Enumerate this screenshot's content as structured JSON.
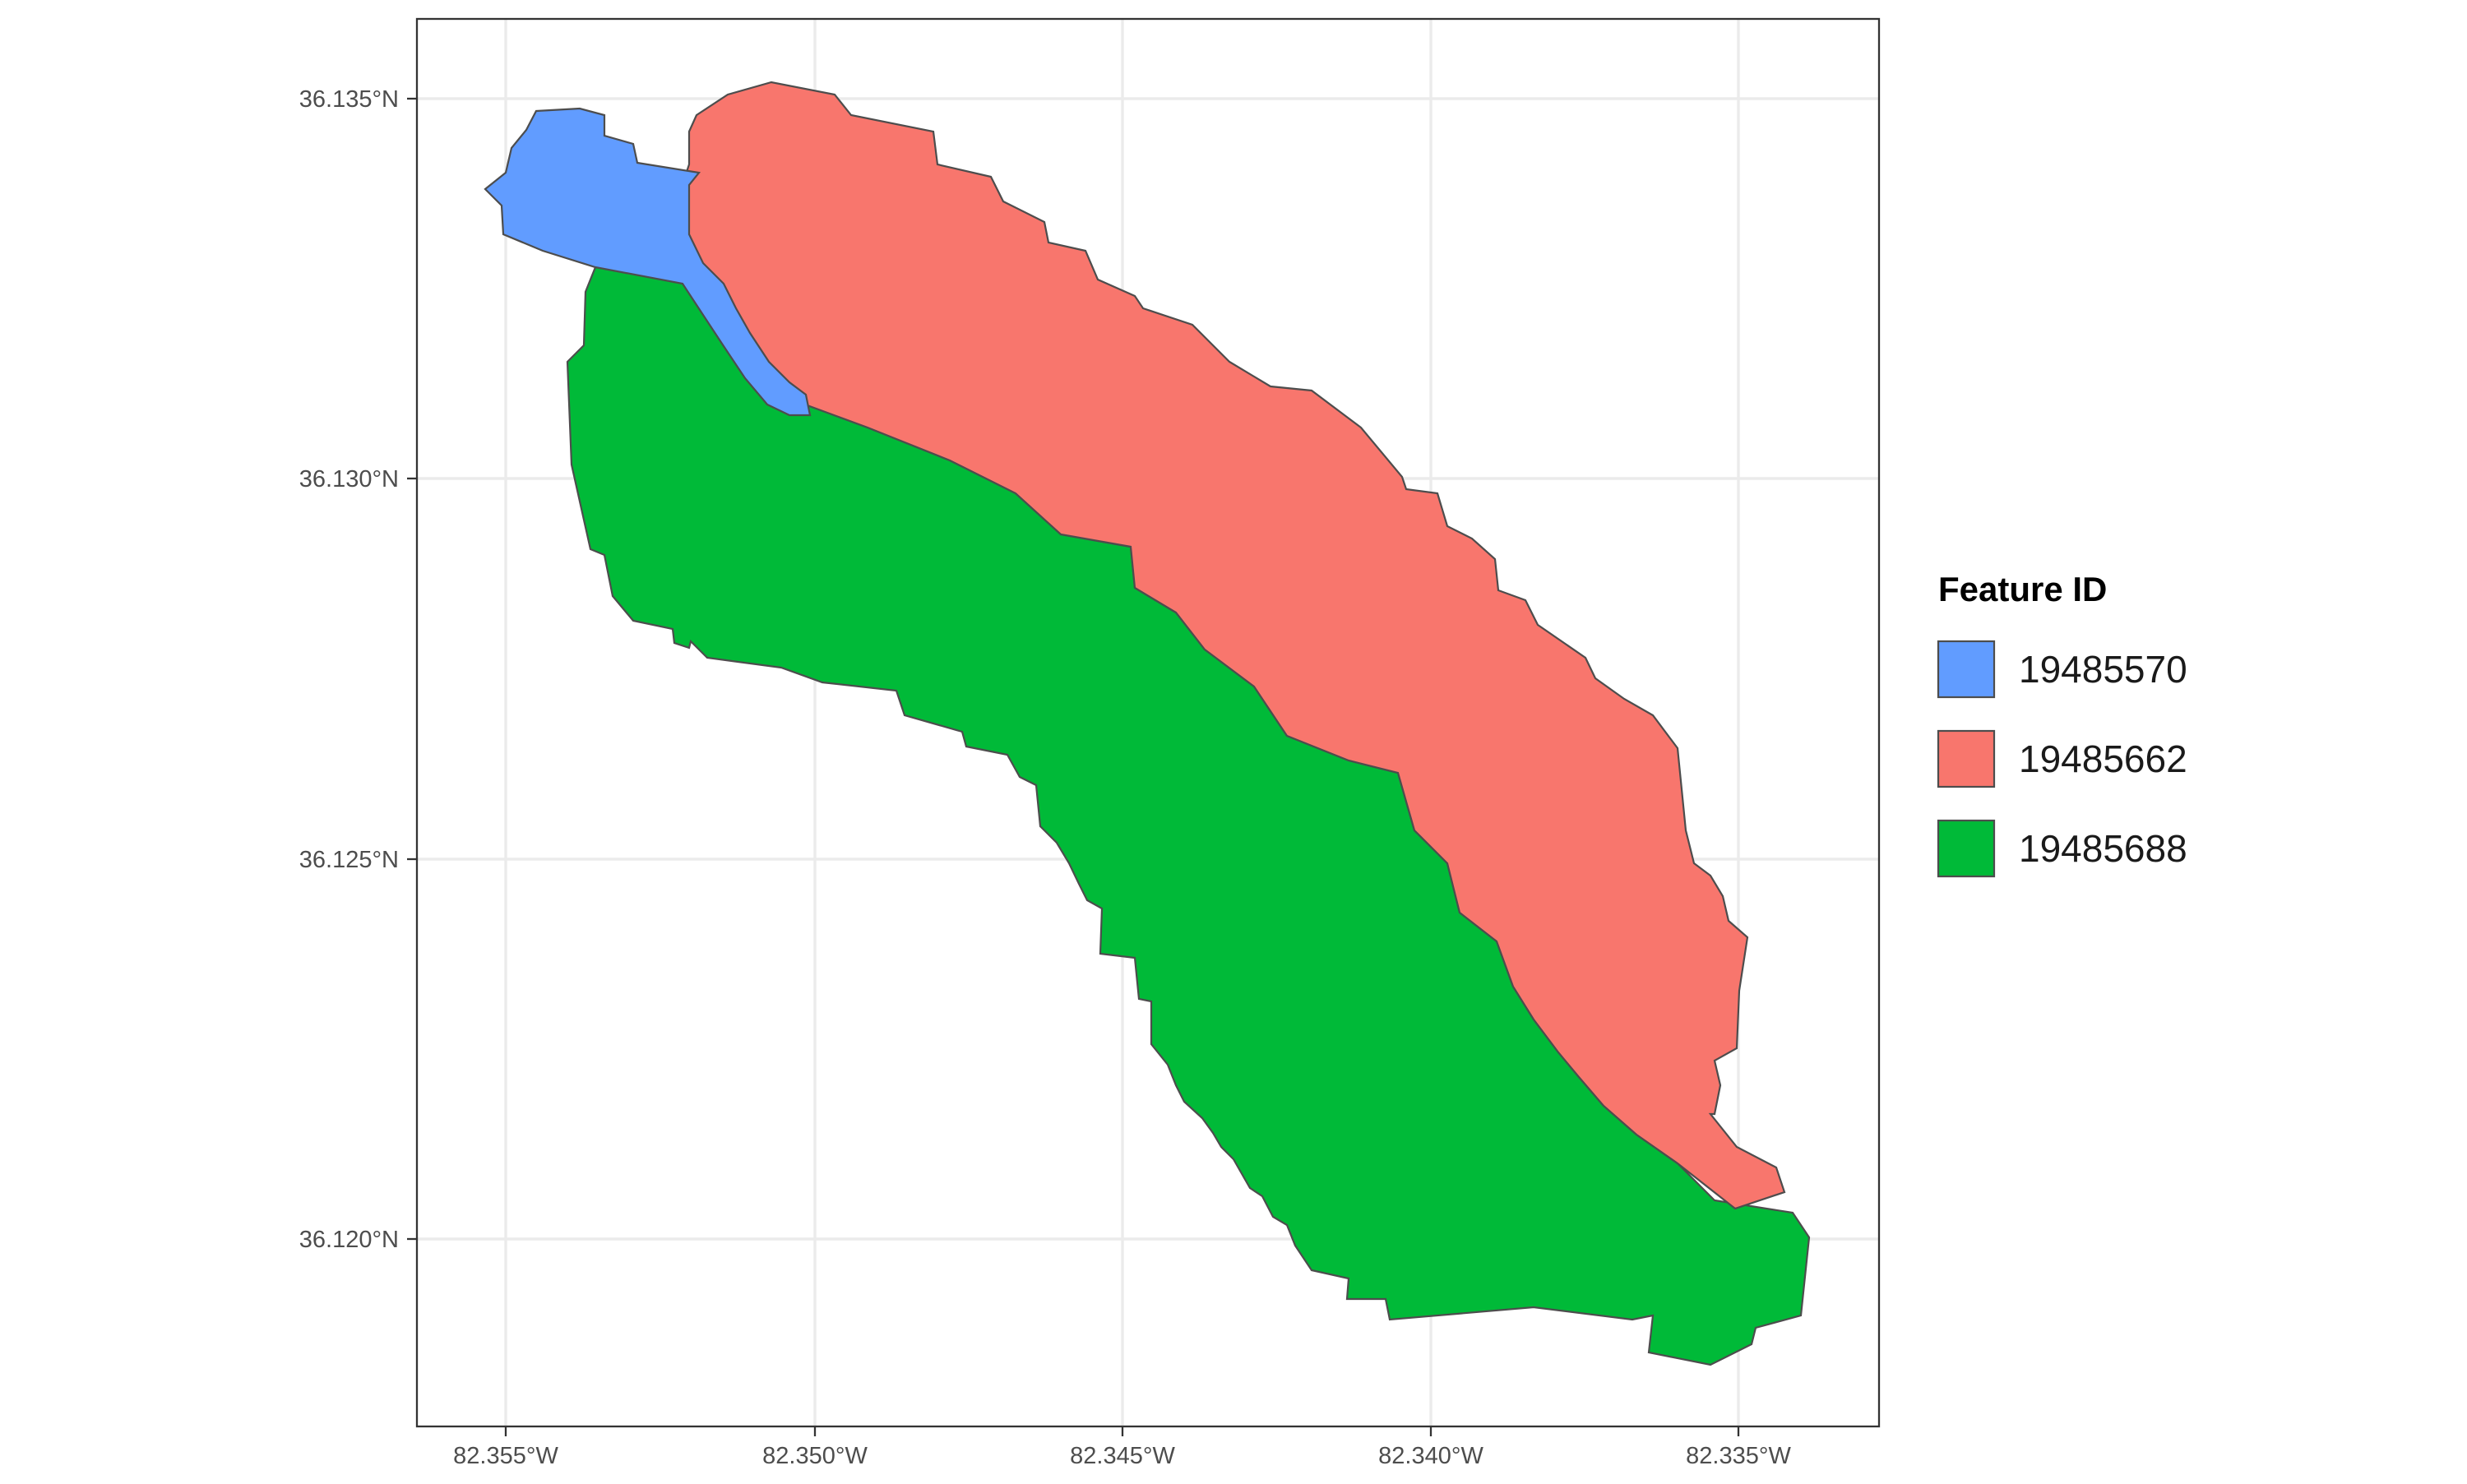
{
  "map": {
    "x_ticks": [
      "82.355°W",
      "82.350°W",
      "82.345°W",
      "82.340°W",
      "82.335°W"
    ],
    "y_ticks": [
      "36.135°N",
      "36.130°N",
      "36.125°N",
      "36.120°N"
    ],
    "grid": true
  },
  "legend": {
    "title": "Feature ID",
    "placement": "right",
    "items": [
      {
        "label": "19485570",
        "color": "#619CFF"
      },
      {
        "label": "19485662",
        "color": "#F8766D"
      },
      {
        "label": "19485688",
        "color": "#00BA38"
      }
    ]
  },
  "styles": {
    "border_color": "#4d4d4d",
    "panel_border": "#333333",
    "grid_color": "#ebebeb"
  }
}
